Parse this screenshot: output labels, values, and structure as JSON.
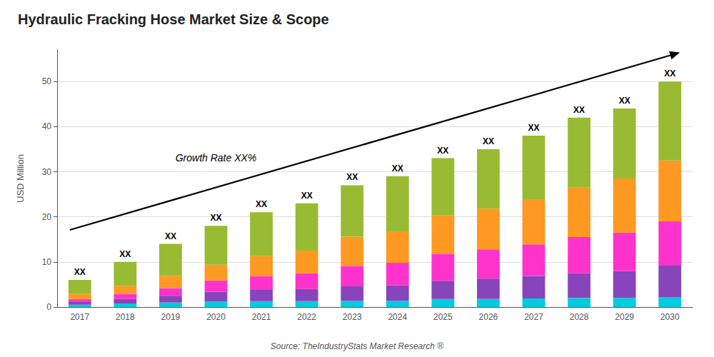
{
  "chart_data": {
    "type": "bar",
    "title": "Hydraulic Fracking Hose Market Size & Scope",
    "ylabel": "USD Million",
    "source": "Source: TheIndustryStats Market Research ®",
    "categories": [
      "2017",
      "2018",
      "2019",
      "2020",
      "2021",
      "2022",
      "2023",
      "2024",
      "2025",
      "2026",
      "2027",
      "2028",
      "2029",
      "2030"
    ],
    "series": [
      {
        "color": "#00ccdd",
        "values": [
          0.5,
          0.8,
          1.0,
          1.2,
          1.3,
          1.3,
          1.4,
          1.4,
          1.8,
          1.8,
          1.9,
          2.0,
          2.0,
          2.2
        ]
      },
      {
        "color": "#8844bb",
        "values": [
          0.6,
          1.0,
          1.5,
          2.2,
          2.5,
          2.7,
          3.2,
          3.4,
          4.0,
          4.5,
          5.0,
          5.5,
          6.0,
          7.0
        ]
      },
      {
        "color": "#ff33cc",
        "values": [
          0.7,
          1.1,
          1.7,
          2.5,
          3.0,
          3.5,
          4.5,
          5.0,
          6.0,
          6.5,
          7.0,
          8.0,
          8.5,
          9.8
        ]
      },
      {
        "color": "#ff9922",
        "values": [
          1.1,
          1.8,
          2.7,
          3.5,
          4.5,
          5.0,
          6.5,
          7.0,
          8.5,
          9.0,
          10.0,
          11.0,
          12.0,
          13.5
        ]
      },
      {
        "color": "#99bb33",
        "values": [
          3.1,
          5.3,
          7.1,
          8.6,
          9.7,
          10.5,
          11.4,
          12.2,
          12.7,
          13.2,
          14.1,
          15.5,
          15.5,
          17.5
        ]
      }
    ],
    "stacked": true,
    "bar_labels": [
      "XX",
      "XX",
      "XX",
      "XX",
      "XX",
      "XX",
      "XX",
      "XX",
      "XX",
      "XX",
      "XX",
      "XX",
      "XX",
      "XX"
    ],
    "annotations": [
      "Growth Rate XX%"
    ],
    "ylim": [
      0,
      57
    ],
    "yticks": [
      0,
      10,
      20,
      30,
      40,
      50
    ],
    "grid": true
  }
}
